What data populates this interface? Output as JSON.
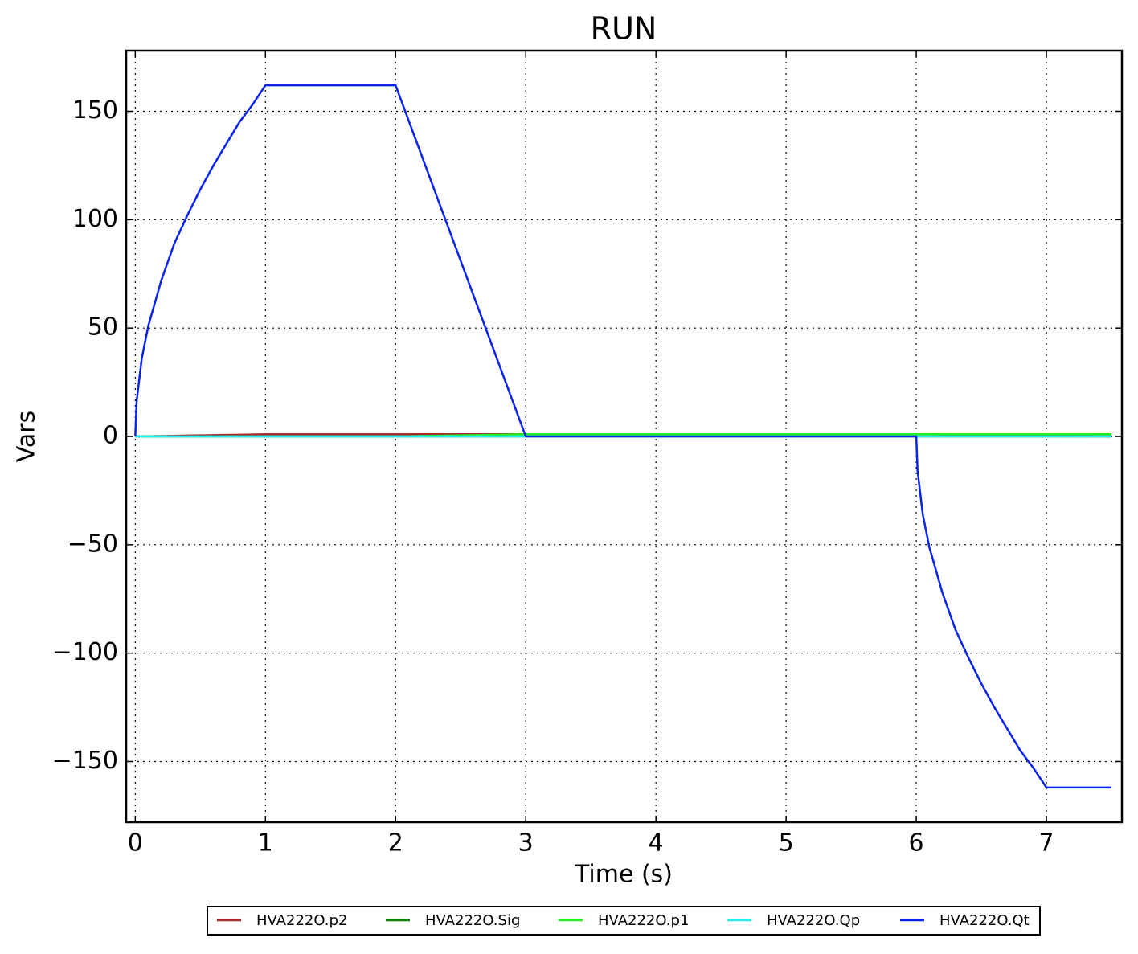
{
  "chart_data": {
    "type": "line",
    "title": "RUN",
    "x_label": "Time (s)",
    "y_label": "Vars",
    "x": [
      0,
      0.01,
      0.05,
      0.1,
      0.2,
      0.3,
      0.4,
      0.5,
      0.6,
      0.7,
      0.8,
      0.9,
      1,
      2,
      3,
      4,
      5,
      6,
      6.01,
      6.05,
      6.1,
      6.2,
      6.3,
      6.4,
      6.5,
      6.6,
      6.7,
      6.8,
      6.9,
      7,
      7.5
    ],
    "series": [
      {
        "name": "HVA222O.p2",
        "color": "#a52a2a",
        "values": [
          0,
          0,
          0.1,
          0.1,
          0.2,
          0.3,
          0.4,
          0.5,
          0.6,
          0.7,
          0.8,
          0.9,
          1,
          1,
          1,
          1,
          1,
          1,
          1,
          1,
          1,
          0.9,
          0.8,
          0.7,
          0.6,
          0.5,
          0.4,
          0.3,
          0.2,
          0.1,
          0
        ]
      },
      {
        "name": "HVA222O.Sig",
        "color": "#007f00",
        "values": [
          0,
          0,
          0,
          0,
          0,
          0,
          0,
          0,
          0,
          0,
          0,
          0,
          0,
          0,
          0,
          0,
          0,
          0,
          0,
          0,
          0,
          0,
          0,
          0,
          0,
          0,
          0,
          0,
          0,
          0,
          0
        ]
      },
      {
        "name": "HVA222O.p1",
        "color": "#22ee22",
        "values": [
          0,
          0,
          0,
          0,
          0,
          0,
          0,
          0,
          0,
          0,
          0,
          0,
          0,
          0,
          1,
          1,
          1,
          1,
          1,
          1,
          1,
          1,
          1,
          1,
          1,
          1,
          1,
          1,
          1,
          1,
          1
        ]
      },
      {
        "name": "HVA222O.Qp",
        "color": "#22eeee",
        "values": [
          0,
          0,
          0,
          0,
          0,
          0,
          0,
          0,
          0,
          0,
          0,
          0,
          0,
          0,
          0,
          0,
          0,
          0,
          0,
          0,
          0,
          0,
          0,
          0,
          0,
          0,
          0,
          0,
          0,
          0,
          0
        ]
      },
      {
        "name": "HVA222O.Qt",
        "color": "#0a22ee",
        "values": [
          0,
          16,
          36,
          51,
          72,
          89,
          102,
          114,
          125,
          135,
          145,
          153,
          162,
          162,
          0,
          0,
          0,
          0,
          -16,
          -36,
          -51,
          -72,
          -89,
          -102,
          -114,
          -125,
          -135,
          -145,
          -153,
          -162,
          -162
        ]
      }
    ],
    "xlim": [
      -0.07,
      7.58
    ],
    "ylim": [
      -178,
      178
    ],
    "xticks": [
      0,
      1,
      2,
      3,
      4,
      5,
      6,
      7
    ],
    "yticks": [
      {
        "value": -150,
        "label": "−150"
      },
      {
        "value": -100,
        "label": "−100"
      },
      {
        "value": -50,
        "label": "−50"
      },
      0,
      50,
      100,
      150
    ],
    "grid": true
  }
}
